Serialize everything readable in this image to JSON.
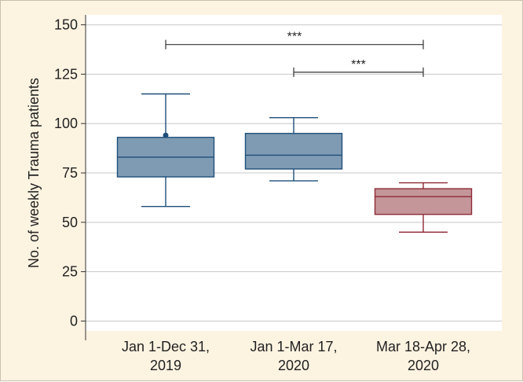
{
  "colors": {
    "frame_bg": "#fdf3e1",
    "plot_bg": "#ffffff",
    "grid": "#c8c8c8",
    "blue_fill": "#7f9bb3",
    "blue_stroke": "#1f4e79",
    "red_fill": "#c4969a",
    "red_stroke": "#8e2a35",
    "bracket": "#333333"
  },
  "chart_data": {
    "type": "box",
    "ylabel": "No. of weekly Trauma patients",
    "ylim": [
      -5,
      155
    ],
    "yticks": [
      0,
      25,
      50,
      75,
      100,
      125,
      150
    ],
    "grid": true,
    "boxes": [
      {
        "label_lines": [
          "Jan 1-Dec 31,",
          "2019"
        ],
        "min": 58,
        "q1": 73,
        "median": 83,
        "q3": 93,
        "max": 115,
        "outliers": [
          94
        ],
        "color": "blue"
      },
      {
        "label_lines": [
          "Jan 1-Mar 17,",
          "2020"
        ],
        "min": 71,
        "q1": 77,
        "median": 84,
        "q3": 95,
        "max": 103,
        "outliers": [],
        "color": "blue"
      },
      {
        "label_lines": [
          "Mar 18-Apr 28,",
          "2020"
        ],
        "min": 45,
        "q1": 54,
        "median": 63,
        "q3": 67,
        "max": 70,
        "outliers": [],
        "color": "red"
      }
    ],
    "annotations": [
      {
        "from": 0,
        "to": 2,
        "y": 140,
        "text": "***"
      },
      {
        "from": 1,
        "to": 2,
        "y": 126,
        "text": "***"
      }
    ]
  }
}
